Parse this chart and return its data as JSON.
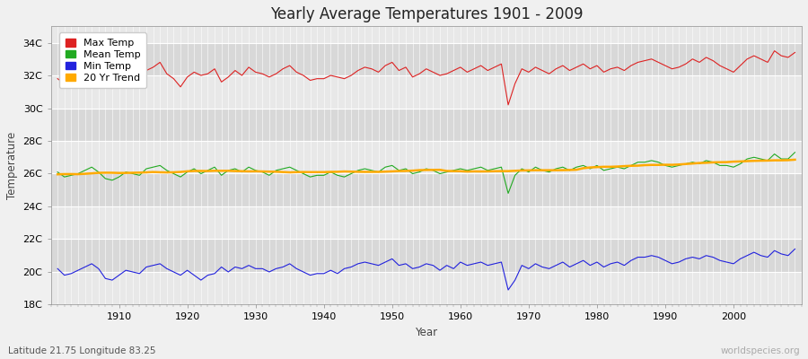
{
  "title": "Yearly Average Temperatures 1901 - 2009",
  "xlabel": "Year",
  "ylabel": "Temperature",
  "lat_lon_label": "Latitude 21.75 Longitude 83.25",
  "watermark": "worldspecies.org",
  "year_start": 1901,
  "year_end": 2009,
  "ylim": [
    18,
    35
  ],
  "yticks": [
    18,
    20,
    22,
    24,
    26,
    28,
    30,
    32,
    34
  ],
  "ytick_labels": [
    "18C",
    "20C",
    "22C",
    "24C",
    "26C",
    "28C",
    "30C",
    "32C",
    "34C"
  ],
  "legend_labels": [
    "Max Temp",
    "Mean Temp",
    "Min Temp",
    "20 Yr Trend"
  ],
  "legend_colors": [
    "#dd2222",
    "#22aa22",
    "#2222dd",
    "#ffaa00"
  ],
  "band_colors": [
    "#e8e8e8",
    "#d8d8d8"
  ],
  "grid_color": "#ffffff",
  "max_temps": [
    31.8,
    31.5,
    31.6,
    31.9,
    32.4,
    32.6,
    32.2,
    31.4,
    31.2,
    31.5,
    32.0,
    31.9,
    31.7,
    32.3,
    32.5,
    32.8,
    32.1,
    31.8,
    31.3,
    31.9,
    32.2,
    32.0,
    32.1,
    32.4,
    31.6,
    31.9,
    32.3,
    32.0,
    32.5,
    32.2,
    32.1,
    31.9,
    32.1,
    32.4,
    32.6,
    32.2,
    32.0,
    31.7,
    31.8,
    31.8,
    32.0,
    31.9,
    31.8,
    32.0,
    32.3,
    32.5,
    32.4,
    32.2,
    32.6,
    32.8,
    32.3,
    32.5,
    31.9,
    32.1,
    32.4,
    32.2,
    32.0,
    32.1,
    32.3,
    32.5,
    32.2,
    32.4,
    32.6,
    32.3,
    32.5,
    32.7,
    30.2,
    31.5,
    32.4,
    32.2,
    32.5,
    32.3,
    32.1,
    32.4,
    32.6,
    32.3,
    32.5,
    32.7,
    32.4,
    32.6,
    32.2,
    32.4,
    32.5,
    32.3,
    32.6,
    32.8,
    32.9,
    33.0,
    32.8,
    32.6,
    32.4,
    32.5,
    32.7,
    33.0,
    32.8,
    33.1,
    32.9,
    32.6,
    32.4,
    32.2,
    32.6,
    33.0,
    33.2,
    33.0,
    32.8,
    33.5,
    33.2,
    33.1,
    33.4
  ],
  "mean_temps": [
    26.1,
    25.8,
    25.9,
    26.0,
    26.2,
    26.4,
    26.1,
    25.7,
    25.6,
    25.8,
    26.1,
    26.0,
    25.9,
    26.3,
    26.4,
    26.5,
    26.2,
    26.0,
    25.8,
    26.1,
    26.3,
    26.0,
    26.2,
    26.4,
    25.9,
    26.2,
    26.3,
    26.1,
    26.4,
    26.2,
    26.1,
    25.9,
    26.2,
    26.3,
    26.4,
    26.2,
    26.0,
    25.8,
    25.9,
    25.9,
    26.1,
    25.9,
    25.8,
    26.0,
    26.2,
    26.3,
    26.2,
    26.1,
    26.4,
    26.5,
    26.2,
    26.3,
    26.0,
    26.1,
    26.3,
    26.2,
    26.0,
    26.1,
    26.2,
    26.3,
    26.2,
    26.3,
    26.4,
    26.2,
    26.3,
    26.4,
    24.8,
    25.9,
    26.3,
    26.1,
    26.4,
    26.2,
    26.1,
    26.3,
    26.4,
    26.2,
    26.4,
    26.5,
    26.3,
    26.5,
    26.2,
    26.3,
    26.4,
    26.3,
    26.5,
    26.7,
    26.7,
    26.8,
    26.7,
    26.5,
    26.4,
    26.5,
    26.6,
    26.7,
    26.6,
    26.8,
    26.7,
    26.5,
    26.5,
    26.4,
    26.6,
    26.9,
    27.0,
    26.9,
    26.8,
    27.2,
    26.9,
    26.9,
    27.3
  ],
  "min_temps": [
    20.2,
    19.8,
    19.9,
    20.1,
    20.3,
    20.5,
    20.2,
    19.6,
    19.5,
    19.8,
    20.1,
    20.0,
    19.9,
    20.3,
    20.4,
    20.5,
    20.2,
    20.0,
    19.8,
    20.1,
    19.8,
    19.5,
    19.8,
    19.9,
    20.3,
    20.0,
    20.3,
    20.2,
    20.4,
    20.2,
    20.2,
    20.0,
    20.2,
    20.3,
    20.5,
    20.2,
    20.0,
    19.8,
    19.9,
    19.9,
    20.1,
    19.9,
    20.2,
    20.3,
    20.5,
    20.6,
    20.5,
    20.4,
    20.6,
    20.8,
    20.4,
    20.5,
    20.2,
    20.3,
    20.5,
    20.4,
    20.1,
    20.4,
    20.2,
    20.6,
    20.4,
    20.5,
    20.6,
    20.4,
    20.5,
    20.6,
    18.9,
    19.5,
    20.4,
    20.2,
    20.5,
    20.3,
    20.2,
    20.4,
    20.6,
    20.3,
    20.5,
    20.7,
    20.4,
    20.6,
    20.3,
    20.5,
    20.6,
    20.4,
    20.7,
    20.9,
    20.9,
    21.0,
    20.9,
    20.7,
    20.5,
    20.6,
    20.8,
    20.9,
    20.8,
    21.0,
    20.9,
    20.7,
    20.6,
    20.5,
    20.8,
    21.0,
    21.2,
    21.0,
    20.9,
    21.3,
    21.1,
    21.0,
    21.4
  ]
}
